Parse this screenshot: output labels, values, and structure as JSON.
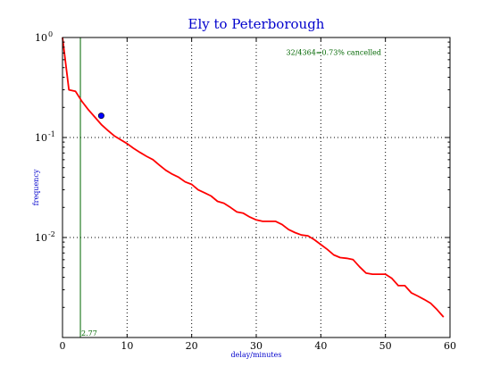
{
  "chart_data": {
    "type": "line",
    "title": "Ely to Peterborough",
    "xlabel": "delay/minutes",
    "ylabel": "frequency",
    "xlim": [
      0,
      60
    ],
    "ylim": [
      0.001,
      1.0
    ],
    "yscale": "log",
    "grid": true,
    "x_ticks": [
      {
        "value": 0,
        "label": "0"
      },
      {
        "value": 10,
        "label": "10"
      },
      {
        "value": 20,
        "label": "20"
      },
      {
        "value": 30,
        "label": "30"
      },
      {
        "value": 40,
        "label": "40"
      },
      {
        "value": 50,
        "label": "50"
      },
      {
        "value": 60,
        "label": "60"
      }
    ],
    "y_ticks": [
      {
        "value": 1,
        "base": "10",
        "exponent": "0"
      },
      {
        "value": 0.1,
        "base": "10",
        "exponent": "-1"
      },
      {
        "value": 0.01,
        "base": "10",
        "exponent": "-2"
      }
    ],
    "series": [
      {
        "color": "#ff0000",
        "x": [
          0,
          1,
          2,
          3,
          4,
          5,
          6,
          7,
          8,
          9,
          10,
          11,
          12,
          13,
          14,
          15,
          16,
          17,
          18,
          19,
          20,
          21,
          22,
          23,
          24,
          25,
          26,
          27,
          28,
          29,
          30,
          31,
          32,
          33,
          34,
          35,
          36,
          37,
          38,
          39,
          40,
          41,
          42,
          43,
          44,
          45,
          46,
          47,
          48,
          49,
          50,
          51,
          52,
          53,
          54,
          55,
          56,
          57,
          58,
          59
        ],
        "y": [
          1.0,
          0.3,
          0.29,
          0.23,
          0.19,
          0.16,
          0.135,
          0.118,
          0.104,
          0.095,
          0.087,
          0.078,
          0.071,
          0.065,
          0.06,
          0.053,
          0.047,
          0.043,
          0.04,
          0.036,
          0.034,
          0.03,
          0.028,
          0.026,
          0.023,
          0.022,
          0.02,
          0.018,
          0.0175,
          0.016,
          0.015,
          0.0145,
          0.0145,
          0.0145,
          0.0135,
          0.012,
          0.0112,
          0.0106,
          0.0104,
          0.0095,
          0.0085,
          0.0076,
          0.0067,
          0.0063,
          0.0062,
          0.006,
          0.0051,
          0.0044,
          0.0043,
          0.0043,
          0.0043,
          0.0039,
          0.0033,
          0.0033,
          0.0028,
          0.0026,
          0.0024,
          0.0022,
          0.0019,
          0.0016
        ]
      }
    ],
    "vline": {
      "x": 2.77,
      "label": "2.77",
      "color": "#006600"
    },
    "marker": {
      "x": 6,
      "y": 0.165,
      "color": "#0000ff"
    },
    "annotation": {
      "text": "32/4364=0.73% cancelled",
      "x": 42,
      "y": 0.7,
      "color": "#006600"
    }
  }
}
